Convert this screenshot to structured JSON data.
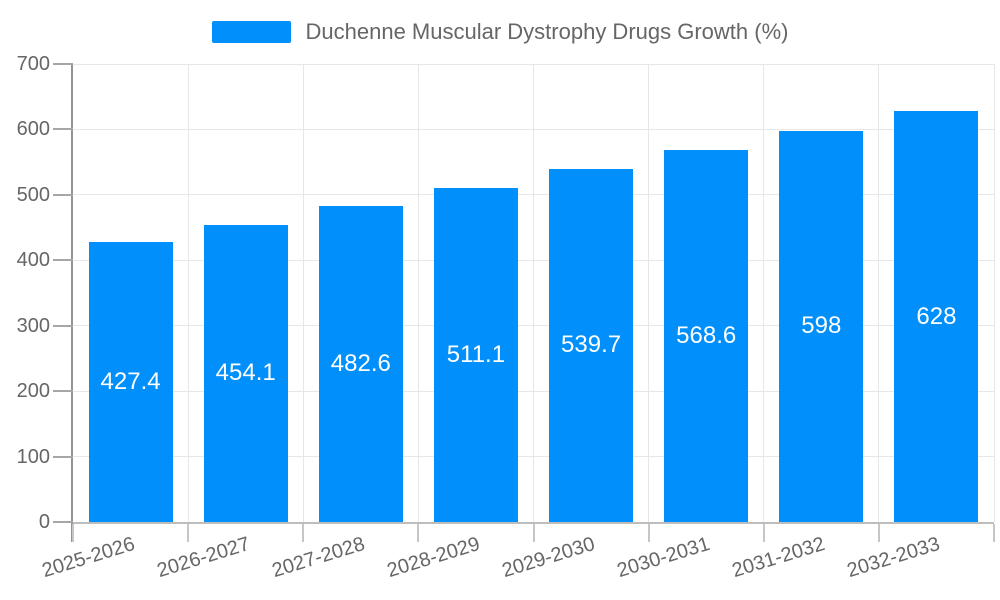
{
  "chart_data": {
    "type": "bar",
    "title": "Duchenne Muscular Dystrophy Drugs Growth (%)",
    "categories": [
      "2025-2026",
      "2026-2027",
      "2027-2028",
      "2028-2029",
      "2029-2030",
      "2030-2031",
      "2031-2032",
      "2032-2033"
    ],
    "values": [
      427.4,
      454.1,
      482.6,
      511.1,
      539.7,
      568.6,
      598,
      628
    ],
    "value_labels": [
      "427.4",
      "454.1",
      "482.6",
      "511.1",
      "539.7",
      "568.6",
      "598",
      "628"
    ],
    "xlabel": "",
    "ylabel": "",
    "ylim": [
      0,
      700
    ],
    "ytick_step": 100,
    "ytick_labels": [
      "0",
      "100",
      "200",
      "300",
      "400",
      "500",
      "600",
      "700"
    ],
    "grid": true,
    "legend_position": "top",
    "colors": {
      "bar": "#008FFB",
      "data_label": "#FFFFFF",
      "axis_text": "#666666",
      "grid_line": "#E7E7E7",
      "y_axis_line": "#949494",
      "x_axis_line": "#BDBDBD",
      "background": "#FFFFFF"
    }
  }
}
